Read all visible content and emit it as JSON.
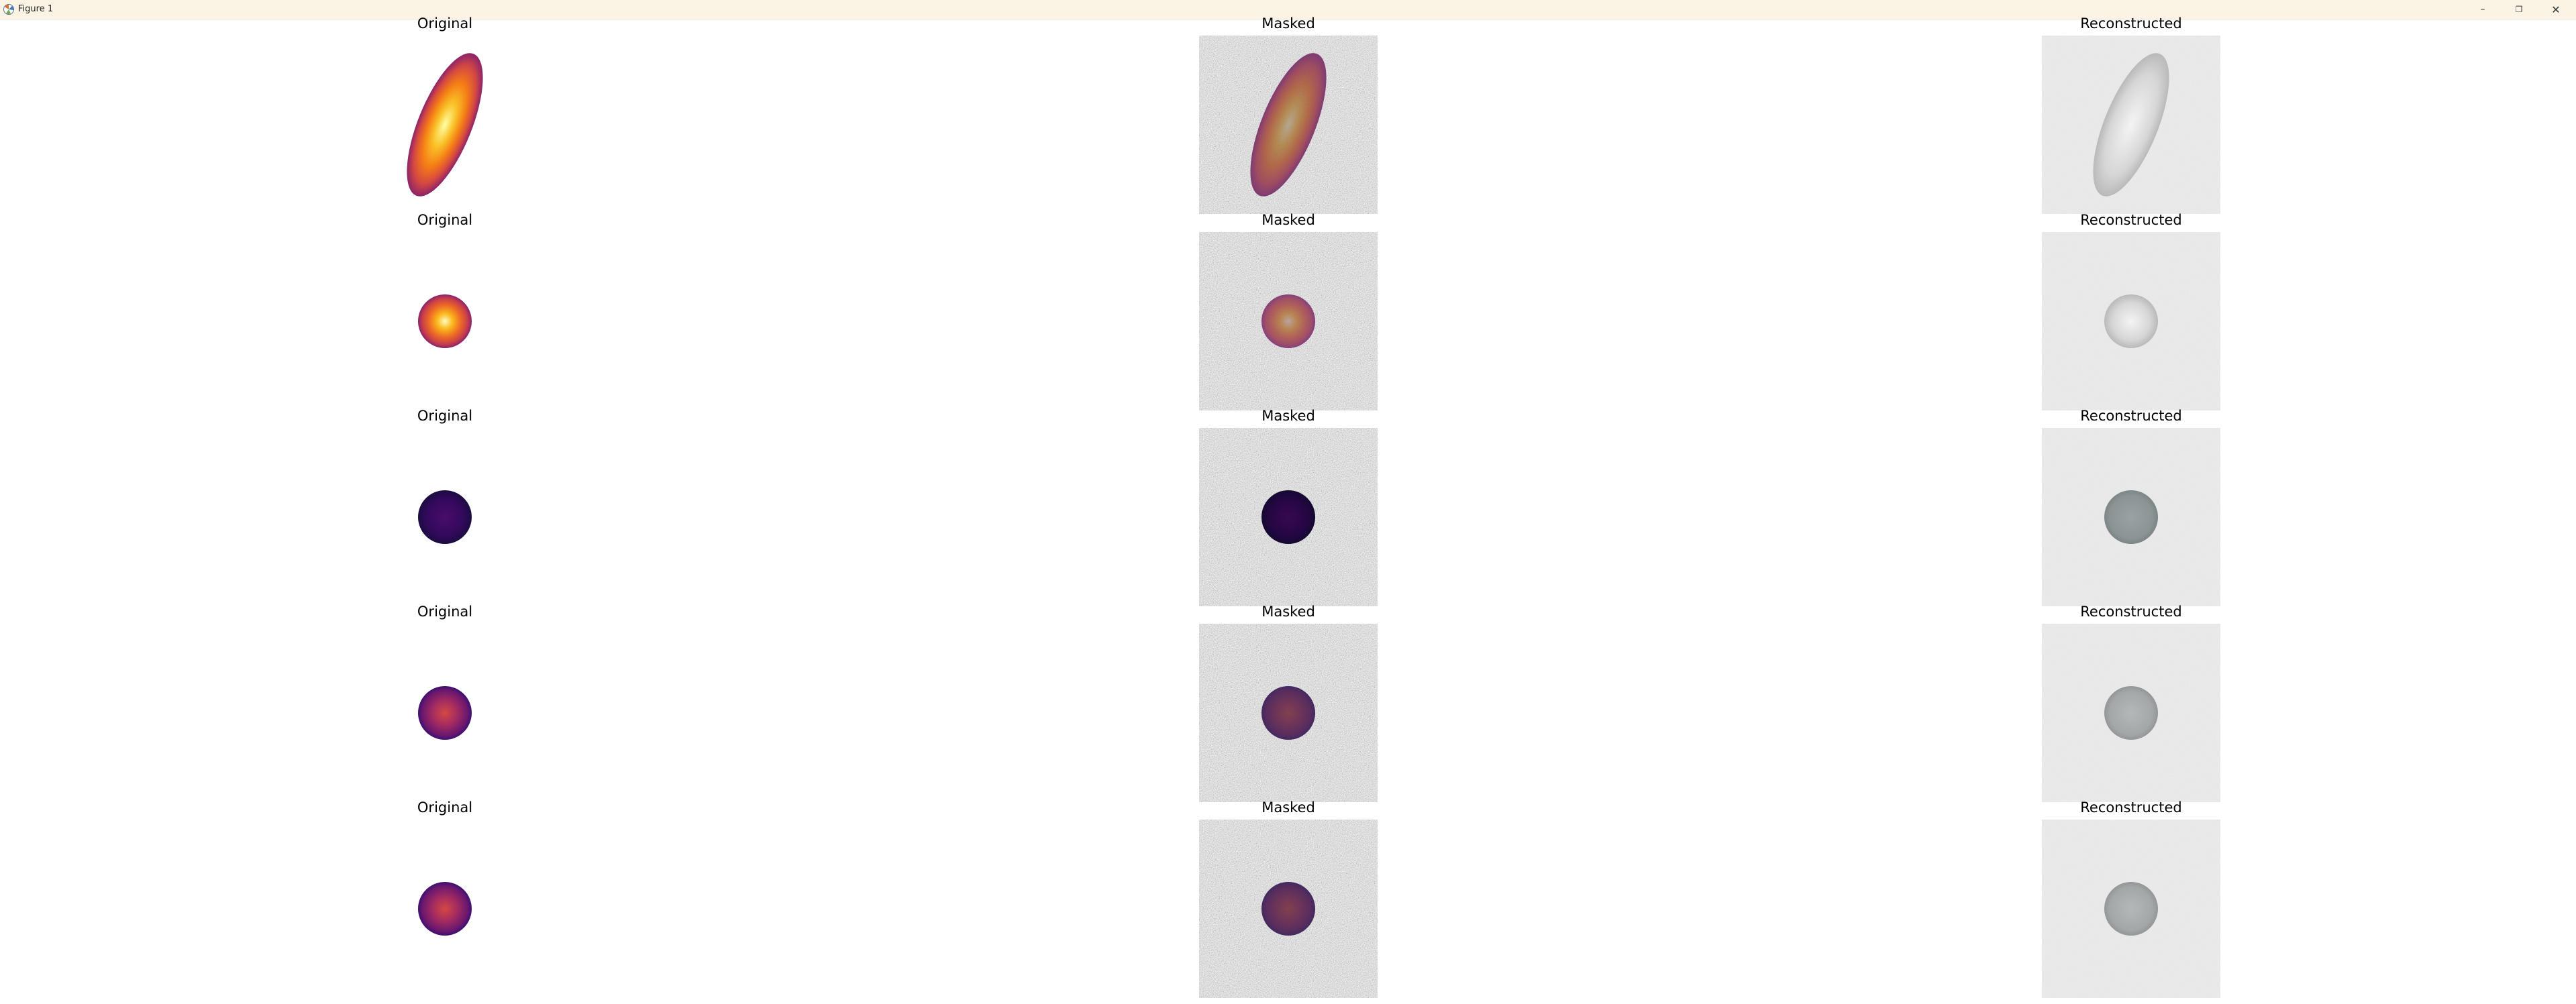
{
  "window": {
    "title": "Figure 1"
  },
  "icons": {
    "app": "matplotlib-icon",
    "minimize": "minimize-icon",
    "maximize": "restore-icon",
    "close": "close-icon"
  },
  "rows": [
    {
      "original_title": "Original",
      "masked_title": "Masked",
      "reconstructed_title": "Reconstructed",
      "shape": "ellipse"
    },
    {
      "original_title": "Original",
      "masked_title": "Masked",
      "reconstructed_title": "Reconstructed",
      "shape": "circle"
    },
    {
      "original_title": "Original",
      "masked_title": "Masked",
      "reconstructed_title": "Reconstructed",
      "shape": "circle"
    },
    {
      "original_title": "Original",
      "masked_title": "Masked",
      "reconstructed_title": "Reconstructed",
      "shape": "circle"
    },
    {
      "original_title": "Original",
      "masked_title": "Masked",
      "reconstructed_title": "Reconstructed",
      "shape": "circle"
    }
  ],
  "colors": {
    "titlebar": "#fbf3e3",
    "noise_bg": "#7d7d7d",
    "recon_bg": "#efefef"
  }
}
